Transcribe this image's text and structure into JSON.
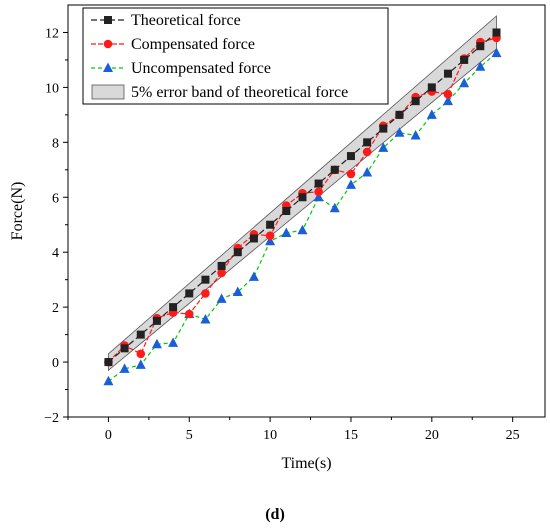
{
  "chart_data": {
    "type": "line",
    "xlabel": "Time(s)",
    "ylabel": "Force(N)",
    "xlim": [
      -2.5,
      27
    ],
    "ylim": [
      -2,
      13
    ],
    "x_ticks": [
      0,
      5,
      10,
      15,
      20,
      25
    ],
    "y_ticks": [
      -2,
      0,
      2,
      4,
      6,
      8,
      10,
      12
    ],
    "grid": false,
    "legend_position": "top-left",
    "caption": "(d)",
    "x": [
      0,
      1,
      2,
      3,
      4,
      5,
      6,
      7,
      8,
      9,
      10,
      11,
      12,
      13,
      14,
      15,
      16,
      17,
      18,
      19,
      20,
      21,
      22,
      23,
      24
    ],
    "series": [
      {
        "name": "Theoretical force",
        "color": "#222222",
        "marker": "square",
        "values": [
          0,
          0.5,
          1,
          1.5,
          2,
          2.5,
          3,
          3.5,
          4,
          4.5,
          5,
          5.5,
          6,
          6.5,
          7,
          7.5,
          8,
          8.5,
          9,
          9.5,
          10,
          10.5,
          11,
          11.5,
          12
        ]
      },
      {
        "name": "Compensated force",
        "color": "#ff1a1a",
        "marker": "circle",
        "values": [
          0,
          0.6,
          0.3,
          1.6,
          1.8,
          1.75,
          2.5,
          3.25,
          4.15,
          4.65,
          4.6,
          5.7,
          6.15,
          6.2,
          7.0,
          6.85,
          7.65,
          8.6,
          9.0,
          9.65,
          9.85,
          9.75,
          11.05,
          11.65,
          11.8
        ]
      },
      {
        "name": "Uncompensated force",
        "color": "#00cc00",
        "marker": "triangle",
        "values": [
          -0.7,
          -0.25,
          -0.1,
          0.65,
          0.7,
          1.75,
          1.55,
          2.3,
          2.55,
          3.1,
          4.4,
          4.7,
          4.8,
          6.0,
          5.6,
          6.45,
          6.9,
          7.8,
          8.35,
          8.25,
          9.0,
          9.5,
          10.15,
          10.75,
          11.25
        ]
      }
    ],
    "band": {
      "name": "5% error band of theoretical force",
      "color": "#d9d9d9",
      "x": [
        0,
        24
      ],
      "lower": [
        -0.3,
        11.4
      ],
      "upper": [
        0.3,
        12.6
      ]
    }
  }
}
